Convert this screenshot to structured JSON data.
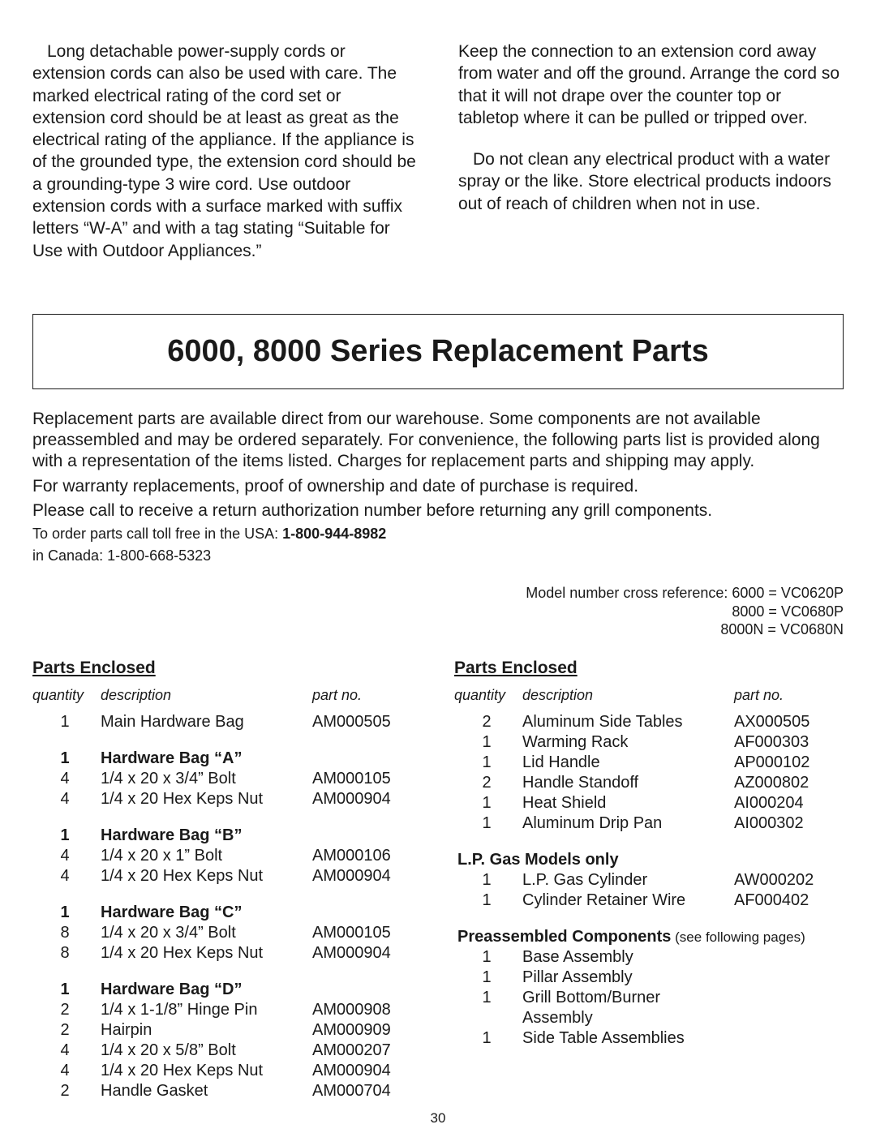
{
  "intro": {
    "left": {
      "p1": "  Long detachable power-supply cords or extension cords can also be used with care. The marked electrical rating of the cord set or extension cord should be at least as great as the electrical rating of the appliance. If the appliance is of the grounded type, the extension cord should be a grounding-type 3 wire cord. Use outdoor extension cords with a surface marked with suffix letters “W-A” and with a tag stating “Suitable for Use with Outdoor Appliances.”"
    },
    "right": {
      "p1": "Keep the connection to an extension cord away from water and off the ground. Arrange the cord so that it will not drape over the counter top or tabletop where it can be pulled or tripped over.",
      "p2": "  Do not clean any electrical product with a water spray or the like. Store electrical products indoors out of reach of children when not in use."
    }
  },
  "title": "6000, 8000 Series Replacement Parts",
  "body": {
    "p1": "Replacement parts are available direct from our warehouse. Some components are not available preassembled and may be ordered separately. For convenience, the following parts list is provided along with a representation of the items listed. Charges for replacement parts and shipping may apply.",
    "p2": "For warranty replacements, proof of ownership and date of purchase is required.",
    "p3": "Please call to receive a return authorization number before returning any grill components.",
    "order_usa_prefix": "To order parts call toll free in the USA:",
    "order_usa_num": "1-800-944-8982",
    "order_can_prefix": "in Canada:",
    "order_can_num": "1-800-668-5323"
  },
  "model_ref": {
    "l1": "Model number cross reference: 6000 = VC0620P",
    "l2": "8000 = VC0680P",
    "l3": "8000N = VC0680N"
  },
  "headers": {
    "parts_enclosed": "Parts Enclosed",
    "qty": "quantity",
    "desc": "description",
    "partno": "part no."
  },
  "left_parts": [
    {
      "type": "item",
      "qty": "1",
      "desc": "Main Hardware Bag",
      "part": "AM000505"
    },
    {
      "type": "spacer"
    },
    {
      "type": "group",
      "qty": "1",
      "desc": "Hardware Bag “A”"
    },
    {
      "type": "item",
      "qty": "4",
      "desc": "1/4 x 20 x 3/4” Bolt",
      "part": "AM000105"
    },
    {
      "type": "item",
      "qty": "4",
      "desc": "1/4 x 20 Hex Keps Nut",
      "part": "AM000904"
    },
    {
      "type": "spacer"
    },
    {
      "type": "group",
      "qty": "1",
      "desc": "Hardware Bag “B”"
    },
    {
      "type": "item",
      "qty": "4",
      "desc": "1/4 x 20 x 1” Bolt",
      "part": "AM000106"
    },
    {
      "type": "item",
      "qty": "4",
      "desc": "1/4 x 20 Hex Keps Nut",
      "part": "AM000904"
    },
    {
      "type": "spacer"
    },
    {
      "type": "group",
      "qty": "1",
      "desc": "Hardware Bag “C”"
    },
    {
      "type": "item",
      "qty": "8",
      "desc": "1/4 x 20 x 3/4” Bolt",
      "part": "AM000105"
    },
    {
      "type": "item",
      "qty": "8",
      "desc": "1/4 x 20 Hex Keps Nut",
      "part": "AM000904"
    },
    {
      "type": "spacer"
    },
    {
      "type": "group",
      "qty": "1",
      "desc": "Hardware Bag “D”"
    },
    {
      "type": "item",
      "qty": "2",
      "desc": "1/4 x 1-1/8” Hinge Pin",
      "part": "AM000908"
    },
    {
      "type": "item",
      "qty": "2",
      "desc": "Hairpin",
      "part": "AM000909"
    },
    {
      "type": "item",
      "qty": "4",
      "desc": "1/4 x 20 x 5/8” Bolt",
      "part": "AM000207"
    },
    {
      "type": "item",
      "qty": "4",
      "desc": "1/4 x 20 Hex Keps Nut",
      "part": "AM000904"
    },
    {
      "type": "item",
      "qty": "2",
      "desc": "Handle Gasket",
      "part": "AM000704"
    }
  ],
  "right_parts": [
    {
      "type": "item",
      "qty": "2",
      "desc": "Aluminum Side Tables",
      "part": "AX000505"
    },
    {
      "type": "item",
      "qty": "1",
      "desc": "Warming Rack",
      "part": "AF000303"
    },
    {
      "type": "item",
      "qty": "1",
      "desc": "Lid Handle",
      "part": "AP000102"
    },
    {
      "type": "item",
      "qty": "2",
      "desc": "Handle Standoff",
      "part": "AZ000802"
    },
    {
      "type": "item",
      "qty": "1",
      "desc": "Heat Shield",
      "part": "AI000204"
    },
    {
      "type": "item",
      "qty": "1",
      "desc": "Aluminum Drip Pan",
      "part": "AI000302"
    },
    {
      "type": "spacer"
    },
    {
      "type": "section",
      "desc": "L.P. Gas Models only"
    },
    {
      "type": "item",
      "qty": "1",
      "desc": "L.P. Gas Cylinder",
      "part": "AW000202"
    },
    {
      "type": "item",
      "qty": "1",
      "desc": "Cylinder Retainer Wire",
      "part": "AF000402"
    },
    {
      "type": "spacer"
    },
    {
      "type": "section_sub",
      "desc": "Preassembled Components",
      "sub": " (see following pages)"
    },
    {
      "type": "item",
      "qty": "1",
      "desc": "Base Assembly",
      "part": ""
    },
    {
      "type": "item",
      "qty": "1",
      "desc": "Pillar Assembly",
      "part": ""
    },
    {
      "type": "item",
      "qty": "1",
      "desc": "Grill Bottom/Burner Assembly",
      "part": ""
    },
    {
      "type": "item",
      "qty": "1",
      "desc": "Side Table Assemblies",
      "part": ""
    }
  ],
  "page_number": "30",
  "colors": {
    "text": "#1a1a1a",
    "background": "#ffffff",
    "border": "#1a1a1a"
  }
}
